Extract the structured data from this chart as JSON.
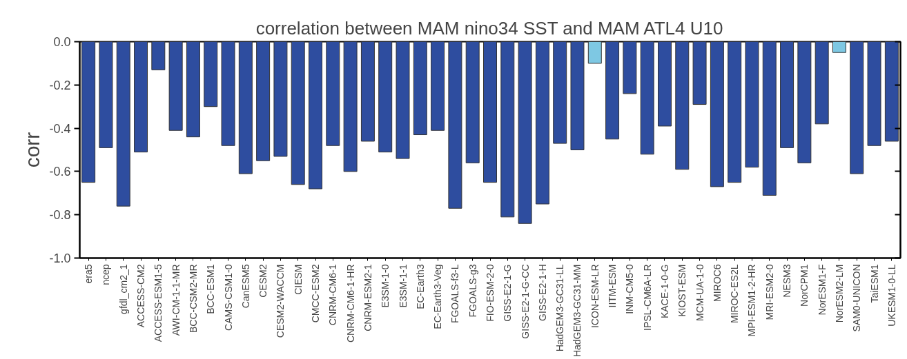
{
  "chart_data": {
    "type": "bar",
    "title": "correlation between MAM nino34 SST and MAM ATL4 U10",
    "ylabel": "corr",
    "categories": [
      "era5",
      "ncep",
      "gfdl_cm2_1",
      "ACCESS-CM2",
      "ACCESS-ESM1-5",
      "AWI-CM-1-1-MR",
      "BCC-CSM2-MR",
      "BCC-ESM1",
      "CAMS-CSM1-0",
      "CanESM5",
      "CESM2",
      "CESM2-WACCM",
      "CIESM",
      "CMCC-ESM2",
      "CNRM-CM6-1",
      "CNRM-CM6-1-HR",
      "CNRM-ESM2-1",
      "E3SM-1-0",
      "E3SM-1-1",
      "EC-Earth3",
      "EC-Earth3-Veg",
      "FGOALS-f3-L",
      "FGOALS-g3",
      "FIO-ESM-2-0",
      "GISS-E2-1-G",
      "GISS-E2-1-G-CC",
      "GISS-E2-1-H",
      "HadGEM3-GC31-LL",
      "HadGEM3-GC31-MM",
      "ICON-ESM-LR",
      "IITM-ESM",
      "INM-CM5-0",
      "IPSL-CM6A-LR",
      "KACE-1-0-G",
      "KIOST-ESM",
      "MCM-UA-1-0",
      "MIROC6",
      "MIROC-ES2L",
      "MPI-ESM1-2-HR",
      "MRI-ESM2-0",
      "NESM3",
      "NorCPM1",
      "NorESM1-F",
      "NorESM2-LM",
      "SAM0-UNICON",
      "TaiESM1",
      "UKESM1-0-LL"
    ],
    "values": [
      -0.65,
      -0.49,
      -0.76,
      -0.51,
      -0.13,
      -0.41,
      -0.44,
      -0.3,
      -0.48,
      -0.61,
      -0.55,
      -0.53,
      -0.66,
      -0.68,
      -0.48,
      -0.6,
      -0.46,
      -0.51,
      -0.54,
      -0.43,
      -0.41,
      -0.77,
      -0.56,
      -0.65,
      -0.81,
      -0.84,
      -0.75,
      -0.47,
      -0.5,
      -0.1,
      -0.45,
      -0.24,
      -0.52,
      -0.39,
      -0.59,
      -0.29,
      -0.67,
      -0.65,
      -0.58,
      -0.71,
      -0.49,
      -0.56,
      -0.38,
      -0.05,
      -0.61,
      -0.48,
      -0.46
    ],
    "colors": [
      "#2e4d9f",
      "#2e4d9f",
      "#2e4d9f",
      "#2e4d9f",
      "#2e4d9f",
      "#2e4d9f",
      "#2e4d9f",
      "#2e4d9f",
      "#2e4d9f",
      "#2e4d9f",
      "#2e4d9f",
      "#2e4d9f",
      "#2e4d9f",
      "#2e4d9f",
      "#2e4d9f",
      "#2e4d9f",
      "#2e4d9f",
      "#2e4d9f",
      "#2e4d9f",
      "#2e4d9f",
      "#2e4d9f",
      "#2e4d9f",
      "#2e4d9f",
      "#2e4d9f",
      "#2e4d9f",
      "#2e4d9f",
      "#2e4d9f",
      "#2e4d9f",
      "#2e4d9f",
      "#7ec8e3",
      "#2e4d9f",
      "#2e4d9f",
      "#2e4d9f",
      "#2e4d9f",
      "#2e4d9f",
      "#2e4d9f",
      "#2e4d9f",
      "#2e4d9f",
      "#2e4d9f",
      "#2e4d9f",
      "#2e4d9f",
      "#2e4d9f",
      "#2e4d9f",
      "#7ec8e3",
      "#2e4d9f",
      "#2e4d9f",
      "#2e4d9f"
    ],
    "ylim": [
      -1.0,
      0.0
    ],
    "yticks": [
      {
        "value": 0,
        "label": "0.0"
      },
      {
        "value": -0.2,
        "label": "-0.2"
      },
      {
        "value": -0.4,
        "label": "-0.4"
      },
      {
        "value": -0.6,
        "label": "-0.6"
      },
      {
        "value": -0.8,
        "label": "-0.8"
      },
      {
        "value": -1.0,
        "label": "-1.0"
      }
    ],
    "grid": false
  }
}
